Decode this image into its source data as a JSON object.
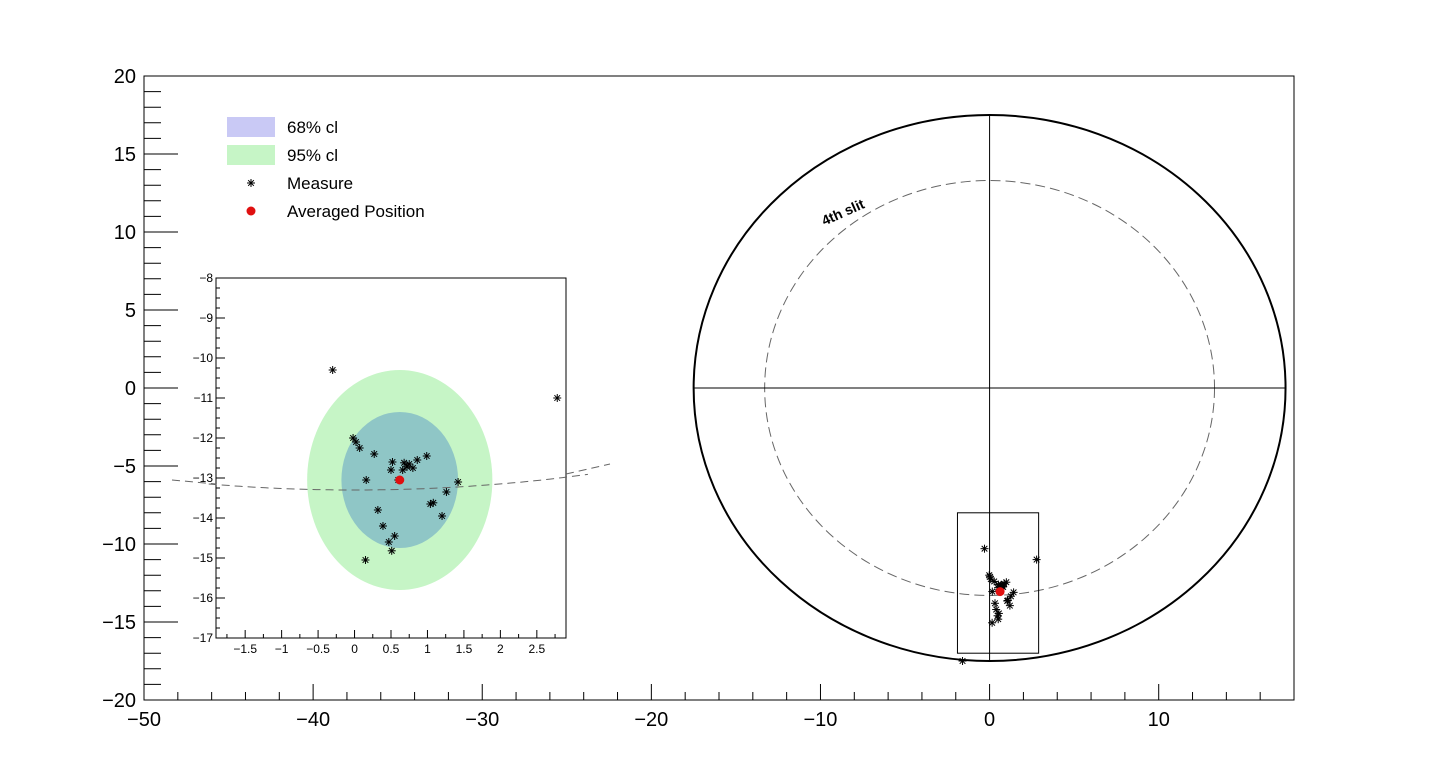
{
  "chart_data": [
    {
      "type": "scatter",
      "role": "main",
      "xlim": [
        -50,
        18
      ],
      "ylim": [
        -20,
        20
      ],
      "x_major_ticks": [
        -50,
        -40,
        -30,
        -20,
        -10,
        0,
        10
      ],
      "x_tick_labels": [
        "−50",
        "−40",
        "−30",
        "−20",
        "−10",
        "0",
        "10"
      ],
      "y_major_ticks": [
        20,
        15,
        10,
        5,
        0,
        -5,
        -10,
        -15,
        -20
      ],
      "y_tick_labels": [
        "20",
        "15",
        "10",
        "5",
        "0",
        "−5",
        "−10",
        "−15",
        "−20"
      ],
      "grid": false,
      "legend_position": "top-left",
      "legend": [
        {
          "name": "68% cl",
          "label": "68% cl",
          "marker": "box",
          "color": "#c9c9f5"
        },
        {
          "name": "95% cl",
          "label": "95% cl",
          "marker": "box",
          "color": "#c6f5c6"
        },
        {
          "name": "Measure",
          "label": "Measure",
          "marker": "asterisk",
          "color": "#000000"
        },
        {
          "name": "Averaged Position",
          "label": "Averaged Position",
          "marker": "dot",
          "color": "#e01010"
        }
      ],
      "annotations": [
        {
          "text": "4th slit"
        }
      ],
      "outer_circle": {
        "cx": 0,
        "cy": 0,
        "r": 17.5
      },
      "slit_circle": {
        "cx": 0,
        "cy": 0,
        "r": 13.3
      },
      "zoom_box": {
        "x0": -1.9,
        "x1": 2.9,
        "y0": -17.0,
        "y1": -8.0
      },
      "averaged_position": {
        "x": 0.62,
        "y": -13.05
      },
      "measures": [
        {
          "x": -0.3,
          "y": -10.3
        },
        {
          "x": 2.78,
          "y": -11.0
        },
        {
          "x": -0.02,
          "y": -12.0
        },
        {
          "x": 0.02,
          "y": -12.1
        },
        {
          "x": 0.07,
          "y": -12.25
        },
        {
          "x": 0.27,
          "y": -12.4
        },
        {
          "x": 0.52,
          "y": -12.6
        },
        {
          "x": 0.68,
          "y": -12.62
        },
        {
          "x": 0.75,
          "y": -12.65
        },
        {
          "x": 0.72,
          "y": -12.72
        },
        {
          "x": 0.8,
          "y": -12.75
        },
        {
          "x": 0.66,
          "y": -12.8
        },
        {
          "x": 0.86,
          "y": -12.55
        },
        {
          "x": 0.99,
          "y": -12.45
        },
        {
          "x": 0.5,
          "y": -12.8
        },
        {
          "x": 0.16,
          "y": -13.05
        },
        {
          "x": 0.6,
          "y": -13.05
        },
        {
          "x": 1.42,
          "y": -13.1
        },
        {
          "x": 1.26,
          "y": -13.35
        },
        {
          "x": 1.04,
          "y": -13.65
        },
        {
          "x": 1.08,
          "y": -13.62
        },
        {
          "x": 0.32,
          "y": -13.8
        },
        {
          "x": 1.2,
          "y": -13.95
        },
        {
          "x": 0.39,
          "y": -14.2
        },
        {
          "x": 0.55,
          "y": -14.45
        },
        {
          "x": 0.47,
          "y": -14.6
        },
        {
          "x": 0.51,
          "y": -14.82
        },
        {
          "x": 0.15,
          "y": -15.05
        },
        {
          "x": -1.6,
          "y": -17.5
        }
      ]
    },
    {
      "type": "scatter",
      "role": "inset",
      "xlim": [
        -1.9,
        2.9
      ],
      "ylim": [
        -17,
        -8
      ],
      "x_major_ticks": [
        -1.5,
        -1,
        -0.5,
        0,
        0.5,
        1,
        1.5,
        2,
        2.5
      ],
      "x_tick_labels": [
        "−1.5",
        "−1",
        "−0.5",
        "0",
        "0.5",
        "1",
        "1.5",
        "2",
        "2.5"
      ],
      "y_major_ticks": [
        -8,
        -9,
        -10,
        -11,
        -12,
        -13,
        -14,
        -15,
        -16,
        -17
      ],
      "y_tick_labels": [
        "−8",
        "−9",
        "−10",
        "−11",
        "−12",
        "−13",
        "−14",
        "−15",
        "−16",
        "−17"
      ],
      "grid": false,
      "ellipse_68": {
        "cx": 0.62,
        "cy": -13.05,
        "rx": 0.8,
        "ry": 1.7,
        "color": "#8fc6c6"
      },
      "ellipse_95": {
        "cx": 0.62,
        "cy": -13.05,
        "rx": 1.27,
        "ry": 2.75,
        "color": "#c6f5c6"
      }
    }
  ],
  "colors": {
    "frame": "#000000",
    "measure": "#000000",
    "averaged_position": "#e01010",
    "slit_dash": "#666666",
    "cl68_legend": "#c9c9f5",
    "cl95": "#c6f5c6",
    "cl68_fill": "#8fc6c6"
  }
}
